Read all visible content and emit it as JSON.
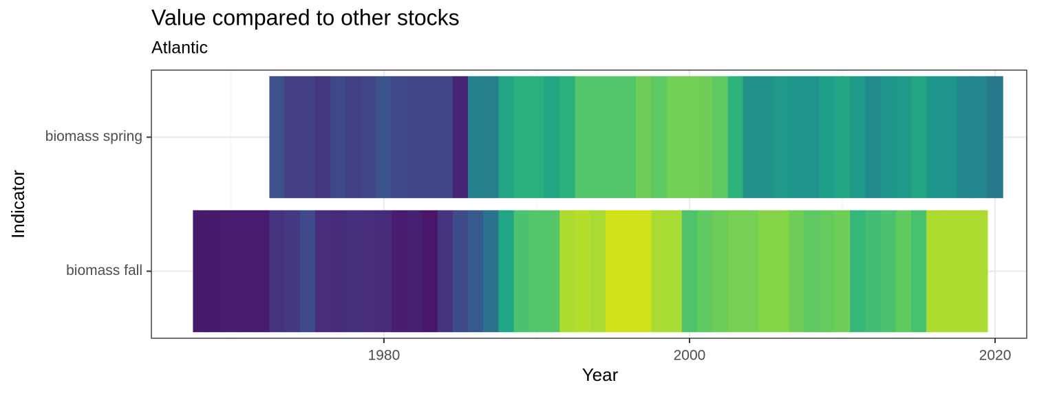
{
  "chart_data": {
    "type": "heatmap",
    "title": "Value compared to other stocks",
    "subtitle": "Atlantic",
    "xlabel": "Year",
    "ylabel": "Indicator",
    "xlim": [
      1964.78,
      2022.07
    ],
    "xticks": [
      1980,
      2000,
      2020
    ],
    "xminor": [
      1970,
      1990,
      2010
    ],
    "grid": true,
    "series": [
      {
        "name": "biomass spring",
        "x": [
          1973,
          1974,
          1975,
          1976,
          1977,
          1978,
          1979,
          1980,
          1981,
          1982,
          1983,
          1984,
          1985,
          1986,
          1987,
          1988,
          1989,
          1990,
          1991,
          1992,
          1993,
          1994,
          1995,
          1996,
          1997,
          1998,
          1999,
          2000,
          2001,
          2002,
          2003,
          2004,
          2005,
          2006,
          2007,
          2008,
          2009,
          2010,
          2011,
          2012,
          2013,
          2014,
          2015,
          2016,
          2017,
          2018,
          2019,
          2020
        ],
        "colors": [
          "#3b528b",
          "#433e85",
          "#433e85",
          "#453781",
          "#3f4889",
          "#424086",
          "#3f4788",
          "#3b528b",
          "#3e4a89",
          "#3f4788",
          "#3f4788",
          "#3f4788",
          "#482475",
          "#26828e",
          "#277f8e",
          "#21a685",
          "#2ab07f",
          "#2ab07f",
          "#22a785",
          "#2ab07f",
          "#54c568",
          "#54c568",
          "#54c568",
          "#54c568",
          "#6ece58",
          "#5ec962",
          "#70cf57",
          "#70cf57",
          "#6ece58",
          "#5ec962",
          "#2db27d",
          "#21918c",
          "#21918c",
          "#1f9a8a",
          "#1f968b",
          "#1f968b",
          "#1fa088",
          "#21a685",
          "#1f9a8a",
          "#228c8d",
          "#1f968b",
          "#1f9a8a",
          "#21a685",
          "#1f968b",
          "#1f968b",
          "#25858e",
          "#25858e",
          "#2a788e"
        ]
      },
      {
        "name": "biomass fall",
        "x": [
          1968,
          1969,
          1970,
          1971,
          1972,
          1973,
          1974,
          1975,
          1976,
          1977,
          1978,
          1979,
          1980,
          1981,
          1982,
          1983,
          1984,
          1985,
          1986,
          1987,
          1988,
          1989,
          1990,
          1991,
          1992,
          1993,
          1994,
          1995,
          1996,
          1997,
          1998,
          1999,
          2000,
          2001,
          2002,
          2003,
          2004,
          2005,
          2006,
          2007,
          2008,
          2009,
          2010,
          2011,
          2012,
          2013,
          2014,
          2015,
          2016,
          2017,
          2018,
          2019
        ],
        "colors": [
          "#481a6c",
          "#481a6c",
          "#471c6e",
          "#471c6e",
          "#471c6e",
          "#46337f",
          "#443a83",
          "#3e4a89",
          "#472d7b",
          "#472a7a",
          "#46307e",
          "#472d7b",
          "#472c7a",
          "#481d6f",
          "#471f70",
          "#481769",
          "#46337f",
          "#3e4c8a",
          "#375a8c",
          "#2c718e",
          "#21a685",
          "#4ac16d",
          "#54c568",
          "#54c568",
          "#addc30",
          "#b5de2b",
          "#a8db34",
          "#d0e11c",
          "#d0e11c",
          "#d0e11c",
          "#a8db34",
          "#a8db34",
          "#4ec36b",
          "#60ca60",
          "#6ccd5a",
          "#75d054",
          "#75d054",
          "#86d549",
          "#86d549",
          "#6ece58",
          "#5ec962",
          "#65cb5e",
          "#6ece58",
          "#35b779",
          "#40bd72",
          "#4ac16d",
          "#60ca60",
          "#48c16e",
          "#addc30",
          "#addc30",
          "#addc30",
          "#addc30"
        ]
      }
    ]
  }
}
